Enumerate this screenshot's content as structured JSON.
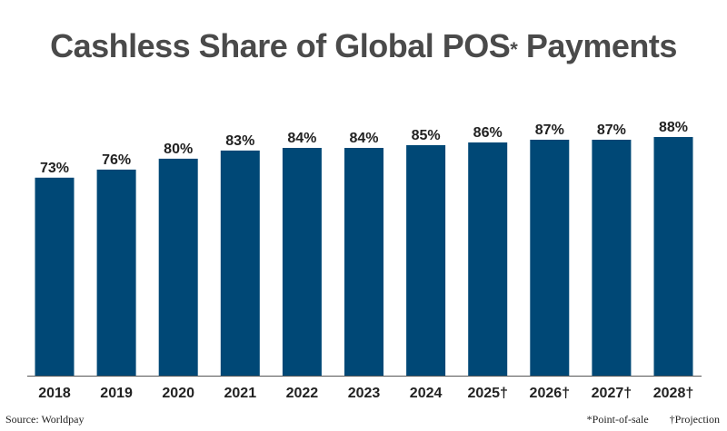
{
  "title": {
    "main": "Cashless Share of Global POS",
    "marker": "*",
    "suffix": " Payments"
  },
  "source": "Source: Worldpay",
  "footnotes": {
    "point_of_sale": "*Point-of-sale",
    "projection": "†Projection"
  },
  "colors": {
    "bar": "#004876",
    "title": "#4a4a4a",
    "label": "#222222",
    "axis": "#555555"
  },
  "chart_data": {
    "type": "bar",
    "title": "Cashless Share of Global POS* Payments",
    "categories": [
      "2018",
      "2019",
      "2020",
      "2021",
      "2022",
      "2023",
      "2024",
      "2025†",
      "2026†",
      "2027†",
      "2028†"
    ],
    "values": [
      73,
      76,
      80,
      83,
      84,
      84,
      85,
      86,
      87,
      87,
      88
    ],
    "data_labels": [
      "73%",
      "76%",
      "80%",
      "83%",
      "84%",
      "84%",
      "85%",
      "86%",
      "87%",
      "87%",
      "88%"
    ],
    "xlabel": "",
    "ylabel": "",
    "ylim": [
      0,
      88
    ],
    "grid": false,
    "legend": "none"
  }
}
